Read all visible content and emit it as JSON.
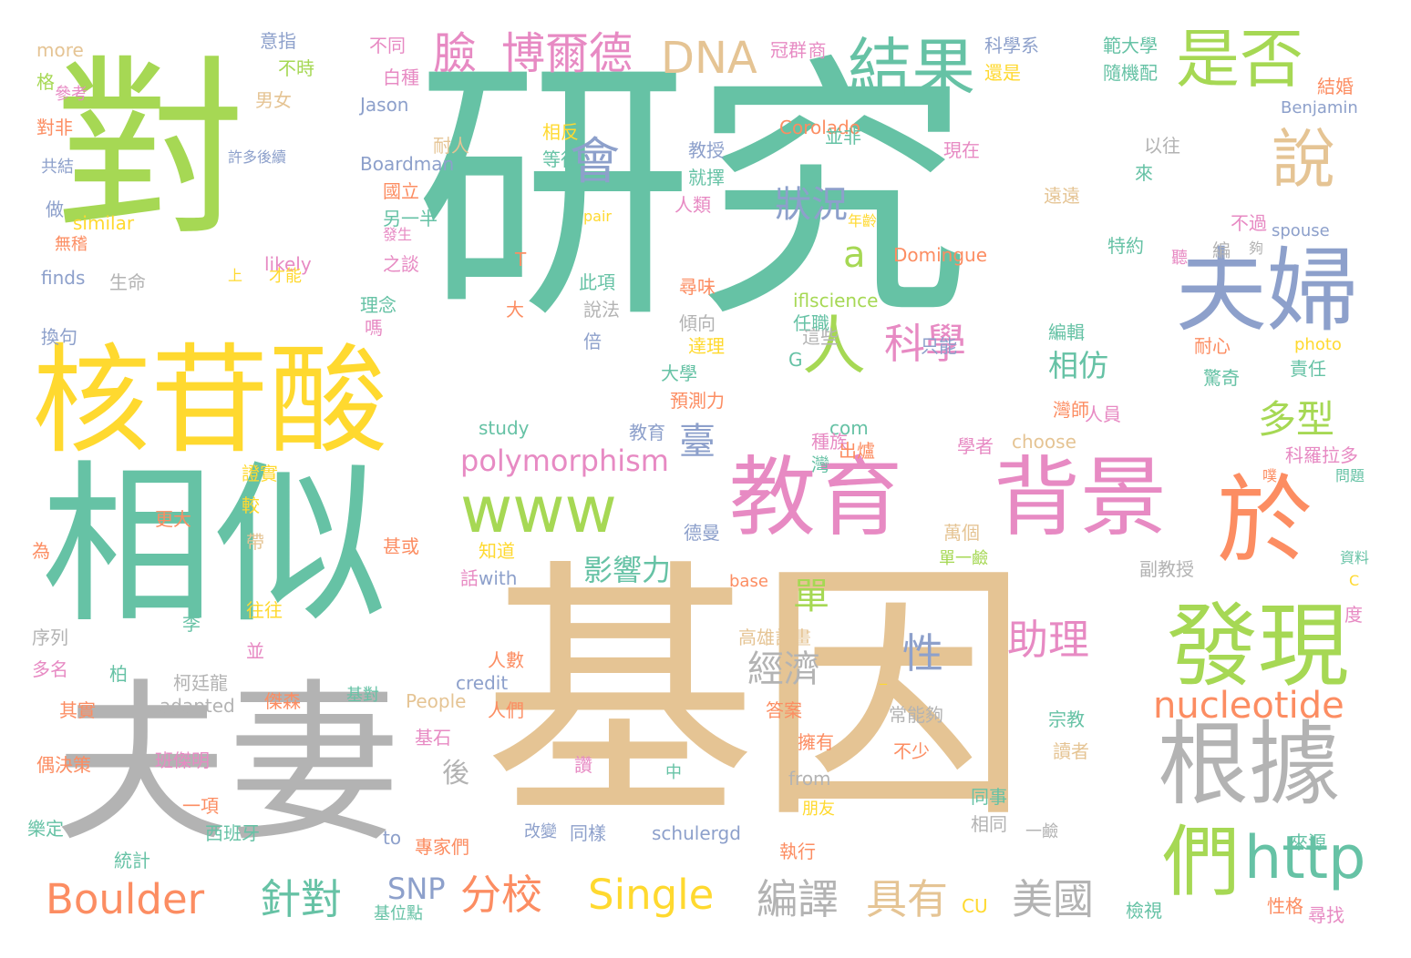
{
  "palette": {
    "teal": "#66c2a5",
    "orange": "#fc8d62",
    "blue": "#8da0cb",
    "pink": "#e78ac3",
    "green": "#a6d854",
    "yellow": "#ffd92f",
    "tan": "#e5c494",
    "gray": "#b3b3b3"
  },
  "words": [
    {
      "text": "研究",
      "color": "teal"
    },
    {
      "text": "基因",
      "color": "tan"
    },
    {
      "text": "對",
      "color": "green"
    },
    {
      "text": "夫妻",
      "color": "gray"
    },
    {
      "text": "相似",
      "color": "teal"
    },
    {
      "text": "核苷酸",
      "color": "yellow"
    },
    {
      "text": "教育",
      "color": "pink"
    },
    {
      "text": "背景",
      "color": "pink"
    },
    {
      "text": "於",
      "color": "orange"
    },
    {
      "text": "發現",
      "color": "green"
    },
    {
      "text": "根據",
      "color": "gray"
    },
    {
      "text": "夫婦",
      "color": "blue"
    },
    {
      "text": "是否",
      "color": "green"
    },
    {
      "text": "結果",
      "color": "teal"
    },
    {
      "text": "說",
      "color": "tan"
    },
    {
      "text": "www",
      "color": "green"
    },
    {
      "text": "們",
      "color": "green"
    },
    {
      "text": "http",
      "color": "teal"
    },
    {
      "text": "nucleotide",
      "color": "orange"
    },
    {
      "text": "人",
      "color": "green"
    },
    {
      "text": "會",
      "color": "blue"
    },
    {
      "text": "科學",
      "color": "pink"
    },
    {
      "text": "狀況",
      "color": "blue"
    },
    {
      "text": "DNA",
      "color": "tan"
    },
    {
      "text": "臉",
      "color": "pink"
    },
    {
      "text": "博爾德",
      "color": "pink"
    },
    {
      "text": "多型",
      "color": "green"
    },
    {
      "text": "polymorphism",
      "color": "pink"
    },
    {
      "text": "Boulder",
      "color": "orange"
    },
    {
      "text": "Single",
      "color": "yellow"
    },
    {
      "text": "分校",
      "color": "orange"
    },
    {
      "text": "針對",
      "color": "teal"
    },
    {
      "text": "編譯",
      "color": "gray"
    },
    {
      "text": "具有",
      "color": "tan"
    },
    {
      "text": "美國",
      "color": "gray"
    },
    {
      "text": "經濟",
      "color": "gray"
    },
    {
      "text": "助理",
      "color": "pink"
    },
    {
      "text": "性",
      "color": "blue"
    },
    {
      "text": "相仿",
      "color": "teal"
    },
    {
      "text": "臺",
      "color": "blue"
    },
    {
      "text": "單",
      "color": "green"
    },
    {
      "text": "影響力",
      "color": "teal"
    },
    {
      "text": "a",
      "color": "green"
    },
    {
      "text": "SNP",
      "color": "blue"
    },
    {
      "text": "後",
      "color": "gray"
    },
    {
      "text": "more",
      "color": "tan"
    },
    {
      "text": "格",
      "color": "green"
    },
    {
      "text": "參考",
      "color": "pink"
    },
    {
      "text": "對非",
      "color": "orange"
    },
    {
      "text": "共結",
      "color": "blue"
    },
    {
      "text": "做",
      "color": "blue"
    },
    {
      "text": "similar",
      "color": "yellow"
    },
    {
      "text": "無稽",
      "color": "orange"
    },
    {
      "text": "finds",
      "color": "blue"
    },
    {
      "text": "生命",
      "color": "gray"
    },
    {
      "text": "意指",
      "color": "blue"
    },
    {
      "text": "不時",
      "color": "green"
    },
    {
      "text": "男女",
      "color": "tan"
    },
    {
      "text": "許多後續",
      "color": "blue"
    },
    {
      "text": "likely",
      "color": "pink"
    },
    {
      "text": "才能",
      "color": "yellow"
    },
    {
      "text": "上",
      "color": "yellow"
    },
    {
      "text": "不同",
      "color": "pink"
    },
    {
      "text": "白種",
      "color": "pink"
    },
    {
      "text": "Jason",
      "color": "blue"
    },
    {
      "text": "Boardman",
      "color": "blue"
    },
    {
      "text": "國立",
      "color": "orange"
    },
    {
      "text": "另一半",
      "color": "teal"
    },
    {
      "text": "發生",
      "color": "pink"
    },
    {
      "text": "之談",
      "color": "pink"
    },
    {
      "text": "理念",
      "color": "teal"
    },
    {
      "text": "嗎",
      "color": "pink"
    },
    {
      "text": "換句",
      "color": "blue"
    },
    {
      "text": "相反",
      "color": "yellow"
    },
    {
      "text": "耐人",
      "color": "tan"
    },
    {
      "text": "pair",
      "color": "yellow"
    },
    {
      "text": "T",
      "color": "orange"
    },
    {
      "text": "大",
      "color": "orange"
    },
    {
      "text": "教授",
      "color": "blue"
    },
    {
      "text": "等待",
      "color": "teal"
    },
    {
      "text": "就擇",
      "color": "teal"
    },
    {
      "text": "人類",
      "color": "pink"
    },
    {
      "text": "冠群",
      "color": "pink"
    },
    {
      "text": "商",
      "color": "pink"
    },
    {
      "text": "Corolado",
      "color": "orange"
    },
    {
      "text": "並非",
      "color": "teal"
    },
    {
      "text": "現在",
      "color": "pink"
    },
    {
      "text": "年齡",
      "color": "yellow"
    },
    {
      "text": "Domingue",
      "color": "orange"
    },
    {
      "text": "iflscience",
      "color": "green"
    },
    {
      "text": "此項",
      "color": "teal"
    },
    {
      "text": "說法",
      "color": "gray"
    },
    {
      "text": "倍",
      "color": "blue"
    },
    {
      "text": "尋味",
      "color": "orange"
    },
    {
      "text": "傾向",
      "color": "gray"
    },
    {
      "text": "達理",
      "color": "yellow"
    },
    {
      "text": "任職",
      "color": "teal"
    },
    {
      "text": "G",
      "color": "teal"
    },
    {
      "text": "這些",
      "color": "gray"
    },
    {
      "text": "大學",
      "color": "teal"
    },
    {
      "text": "預測力",
      "color": "orange"
    },
    {
      "text": "科學系",
      "color": "blue"
    },
    {
      "text": "還是",
      "color": "yellow"
    },
    {
      "text": "範大學",
      "color": "teal"
    },
    {
      "text": "隨機配",
      "color": "teal"
    },
    {
      "text": "結婚",
      "color": "orange"
    },
    {
      "text": "Benjamin",
      "color": "blue"
    },
    {
      "text": "以往",
      "color": "gray"
    },
    {
      "text": "來",
      "color": "teal"
    },
    {
      "text": "遠遠",
      "color": "tan"
    },
    {
      "text": "不過",
      "color": "pink"
    },
    {
      "text": "spouse",
      "color": "blue"
    },
    {
      "text": "特約",
      "color": "teal"
    },
    {
      "text": "聽",
      "color": "pink"
    },
    {
      "text": "編",
      "color": "gray"
    },
    {
      "text": "夠",
      "color": "gray"
    },
    {
      "text": "只能",
      "color": "blue"
    },
    {
      "text": "編輯",
      "color": "teal"
    },
    {
      "text": "photo",
      "color": "yellow"
    },
    {
      "text": "耐心",
      "color": "orange"
    },
    {
      "text": "責任",
      "color": "teal"
    },
    {
      "text": "驚奇",
      "color": "teal"
    },
    {
      "text": "study",
      "color": "teal"
    },
    {
      "text": "教育",
      "color": "blue"
    },
    {
      "text": "com",
      "color": "teal"
    },
    {
      "text": "種族",
      "color": "pink"
    },
    {
      "text": "灣師",
      "color": "orange"
    },
    {
      "text": "人員",
      "color": "pink"
    },
    {
      "text": "學者",
      "color": "pink"
    },
    {
      "text": "choose",
      "color": "tan"
    },
    {
      "text": "出爐",
      "color": "orange"
    },
    {
      "text": "灣",
      "color": "teal"
    },
    {
      "text": "科羅拉多",
      "color": "pink"
    },
    {
      "text": "噗",
      "color": "orange"
    },
    {
      "text": "問題",
      "color": "teal"
    },
    {
      "text": "證實",
      "color": "yellow"
    },
    {
      "text": "較",
      "color": "yellow"
    },
    {
      "text": "更大",
      "color": "orange"
    },
    {
      "text": "帶",
      "color": "tan"
    },
    {
      "text": "為",
      "color": "orange"
    },
    {
      "text": "甚或",
      "color": "orange"
    },
    {
      "text": "知道",
      "color": "yellow"
    },
    {
      "text": "話",
      "color": "pink"
    },
    {
      "text": "with",
      "color": "blue"
    },
    {
      "text": "德曼",
      "color": "blue"
    },
    {
      "text": "萬個",
      "color": "tan"
    },
    {
      "text": "單一鹼",
      "color": "green"
    },
    {
      "text": "資料",
      "color": "teal"
    },
    {
      "text": "base",
      "color": "orange"
    },
    {
      "text": "副教授",
      "color": "gray"
    },
    {
      "text": "C",
      "color": "yellow"
    },
    {
      "text": "度",
      "color": "pink"
    },
    {
      "text": "李",
      "color": "teal"
    },
    {
      "text": "往往",
      "color": "yellow"
    },
    {
      "text": "序列",
      "color": "gray"
    },
    {
      "text": "多名",
      "color": "pink"
    },
    {
      "text": "柏",
      "color": "teal"
    },
    {
      "text": "並",
      "color": "pink"
    },
    {
      "text": "柯廷龍",
      "color": "gray"
    },
    {
      "text": "高雄計畫",
      "color": "tan"
    },
    {
      "text": "人數",
      "color": "orange"
    },
    {
      "text": "credit",
      "color": "blue"
    },
    {
      "text": "_",
      "color": "yellow"
    },
    {
      "text": "其實",
      "color": "orange"
    },
    {
      "text": "adapted",
      "color": "gray"
    },
    {
      "text": "傑森",
      "color": "orange"
    },
    {
      "text": "基對",
      "color": "teal"
    },
    {
      "text": "People",
      "color": "tan"
    },
    {
      "text": "人們",
      "color": "orange"
    },
    {
      "text": "答案",
      "color": "orange"
    },
    {
      "text": "常能夠",
      "color": "gray"
    },
    {
      "text": "宗教",
      "color": "teal"
    },
    {
      "text": "偶決策",
      "color": "orange"
    },
    {
      "text": "班傑明",
      "color": "pink"
    },
    {
      "text": "基石",
      "color": "pink"
    },
    {
      "text": "擁有",
      "color": "orange"
    },
    {
      "text": "讀者",
      "color": "tan"
    },
    {
      "text": "不少",
      "color": "orange"
    },
    {
      "text": "讚",
      "color": "pink"
    },
    {
      "text": "中",
      "color": "teal"
    },
    {
      "text": "from",
      "color": "gray"
    },
    {
      "text": "朋友",
      "color": "yellow"
    },
    {
      "text": "一項",
      "color": "orange"
    },
    {
      "text": "樂定",
      "color": "teal"
    },
    {
      "text": "西班牙",
      "color": "teal"
    },
    {
      "text": "統計",
      "color": "teal"
    },
    {
      "text": "to",
      "color": "blue"
    },
    {
      "text": "專家們",
      "color": "orange"
    },
    {
      "text": "改變",
      "color": "blue"
    },
    {
      "text": "同樣",
      "color": "blue"
    },
    {
      "text": "schulergd",
      "color": "blue"
    },
    {
      "text": "執行",
      "color": "orange"
    },
    {
      "text": "同事",
      "color": "teal"
    },
    {
      "text": "相同",
      "color": "gray"
    },
    {
      "text": "一鹼",
      "color": "gray"
    },
    {
      "text": "來源",
      "color": "teal"
    },
    {
      "text": "基位點",
      "color": "teal"
    },
    {
      "text": "CU",
      "color": "yellow"
    },
    {
      "text": "檢視",
      "color": "teal"
    },
    {
      "text": "性格",
      "color": "orange"
    },
    {
      "text": "尋找",
      "color": "pink"
    }
  ]
}
